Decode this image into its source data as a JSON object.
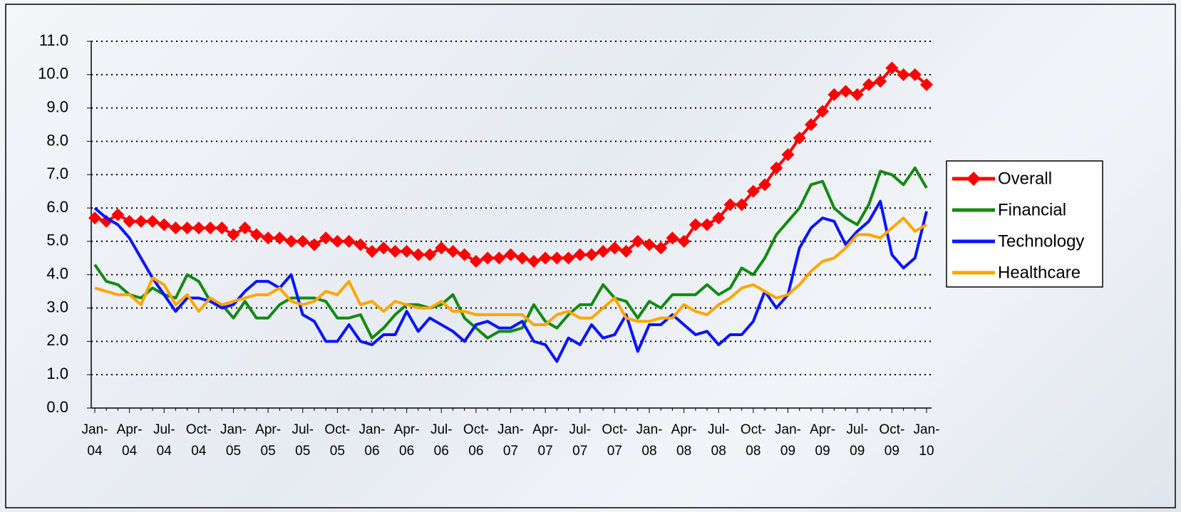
{
  "chart_data": {
    "type": "line",
    "categories": [
      "Jan-\n04",
      null,
      null,
      "Apr-\n04",
      null,
      null,
      "Jul-\n04",
      null,
      null,
      "Oct-\n04",
      null,
      null,
      "Jan-\n05",
      null,
      null,
      "Apr-\n05",
      null,
      null,
      "Jul-\n05",
      null,
      null,
      "Oct-\n05",
      null,
      null,
      "Jan-\n06",
      null,
      null,
      "Apr-\n06",
      null,
      null,
      "Jul-\n06",
      null,
      null,
      "Oct-\n06",
      null,
      null,
      "Jan-\n07",
      null,
      null,
      "Apr-\n07",
      null,
      null,
      "Jul-\n07",
      null,
      null,
      "Oct-\n07",
      null,
      null,
      "Jan-\n08",
      null,
      null,
      "Apr-\n08",
      null,
      null,
      "Jul-\n08",
      null,
      null,
      "Oct-\n08",
      null,
      null,
      "Jan-\n09",
      null,
      null,
      "Apr-\n09",
      null,
      null,
      "Jul-\n09",
      null,
      null,
      "Oct-\n09",
      null,
      null,
      "Jan-\n10"
    ],
    "series": [
      {
        "name": "Overall",
        "color": "#ff0000",
        "marker": "diamond",
        "values": [
          5.7,
          5.6,
          5.8,
          5.6,
          5.6,
          5.6,
          5.5,
          5.4,
          5.4,
          5.4,
          5.4,
          5.4,
          5.2,
          5.4,
          5.2,
          5.1,
          5.1,
          5.0,
          5.0,
          4.9,
          5.1,
          5.0,
          5.0,
          4.9,
          4.7,
          4.8,
          4.7,
          4.7,
          4.6,
          4.6,
          4.8,
          4.7,
          4.6,
          4.4,
          4.5,
          4.5,
          4.6,
          4.5,
          4.4,
          4.5,
          4.5,
          4.5,
          4.6,
          4.6,
          4.7,
          4.8,
          4.7,
          5.0,
          4.9,
          4.8,
          5.1,
          5.0,
          5.5,
          5.5,
          5.7,
          6.1,
          6.1,
          6.5,
          6.7,
          7.2,
          7.6,
          8.1,
          8.5,
          8.9,
          9.4,
          9.5,
          9.4,
          9.7,
          9.8,
          10.2,
          10.0,
          10.0,
          9.7
        ]
      },
      {
        "name": "Financial",
        "color": "#138a13",
        "values": [
          4.3,
          3.8,
          3.7,
          3.4,
          3.3,
          3.6,
          3.4,
          3.3,
          4.0,
          3.8,
          3.2,
          3.1,
          2.7,
          3.2,
          2.7,
          2.7,
          3.1,
          3.3,
          3.3,
          3.3,
          3.2,
          2.7,
          2.7,
          2.8,
          2.1,
          2.4,
          2.8,
          3.1,
          3.1,
          3.0,
          3.1,
          3.4,
          2.7,
          2.4,
          2.1,
          2.3,
          2.3,
          2.4,
          3.1,
          2.6,
          2.4,
          2.8,
          3.1,
          3.1,
          3.7,
          3.3,
          3.2,
          2.7,
          3.2,
          3.0,
          3.4,
          3.4,
          3.4,
          3.7,
          3.4,
          3.6,
          4.2,
          4.0,
          4.5,
          5.2,
          5.6,
          6.0,
          6.7,
          6.8,
          6.0,
          5.7,
          5.5,
          6.1,
          7.1,
          7.0,
          6.7,
          7.2,
          6.6
        ]
      },
      {
        "name": "Technology",
        "color": "#0a14ff",
        "values": [
          6.0,
          5.7,
          5.5,
          5.1,
          4.5,
          3.9,
          3.4,
          2.9,
          3.3,
          3.3,
          3.2,
          3.0,
          3.1,
          3.5,
          3.8,
          3.8,
          3.6,
          4.0,
          2.8,
          2.6,
          2.0,
          2.0,
          2.5,
          2.0,
          1.9,
          2.2,
          2.2,
          2.9,
          2.3,
          2.7,
          2.5,
          2.3,
          2.0,
          2.5,
          2.6,
          2.4,
          2.4,
          2.6,
          2.0,
          1.9,
          1.4,
          2.1,
          1.9,
          2.5,
          2.1,
          2.2,
          2.8,
          1.7,
          2.5,
          2.5,
          2.8,
          2.5,
          2.2,
          2.3,
          1.9,
          2.2,
          2.2,
          2.6,
          3.5,
          3.0,
          3.4,
          4.8,
          5.4,
          5.7,
          5.6,
          4.9,
          5.3,
          5.6,
          6.2,
          4.6,
          4.2,
          4.5,
          5.9
        ]
      },
      {
        "name": "Healthcare",
        "color": "#ffa500",
        "values": [
          3.6,
          3.5,
          3.4,
          3.4,
          3.1,
          3.9,
          3.7,
          3.1,
          3.4,
          2.9,
          3.3,
          3.1,
          3.2,
          3.3,
          3.4,
          3.4,
          3.6,
          3.2,
          3.1,
          3.2,
          3.5,
          3.4,
          3.8,
          3.1,
          3.2,
          2.9,
          3.2,
          3.1,
          3.0,
          3.0,
          3.2,
          2.9,
          2.9,
          2.8,
          2.8,
          2.8,
          2.8,
          2.8,
          2.5,
          2.5,
          2.8,
          2.9,
          2.7,
          2.7,
          3.0,
          3.3,
          2.7,
          2.6,
          2.6,
          2.7,
          2.7,
          3.1,
          2.9,
          2.8,
          3.1,
          3.3,
          3.6,
          3.7,
          3.5,
          3.3,
          3.4,
          3.7,
          4.1,
          4.4,
          4.5,
          4.8,
          5.2,
          5.2,
          5.1,
          5.4,
          5.7,
          5.3,
          5.5
        ]
      }
    ],
    "ylim": [
      0,
      11
    ],
    "yticks": [
      {
        "value": 0,
        "label": "0.0"
      },
      {
        "value": 1,
        "label": "1.0"
      },
      {
        "value": 2,
        "label": "2.0"
      },
      {
        "value": 3,
        "label": "3.0"
      },
      {
        "value": 4,
        "label": "4.0"
      },
      {
        "value": 5,
        "label": "5.0"
      },
      {
        "value": 6,
        "label": "6.0"
      },
      {
        "value": 7,
        "label": "7.0"
      },
      {
        "value": 8,
        "label": "8.0"
      },
      {
        "value": 9,
        "label": "9.0"
      },
      {
        "value": 10,
        "label": "10.0"
      },
      {
        "value": 11,
        "label": "11.0"
      }
    ],
    "grid": true,
    "legend": "right"
  }
}
